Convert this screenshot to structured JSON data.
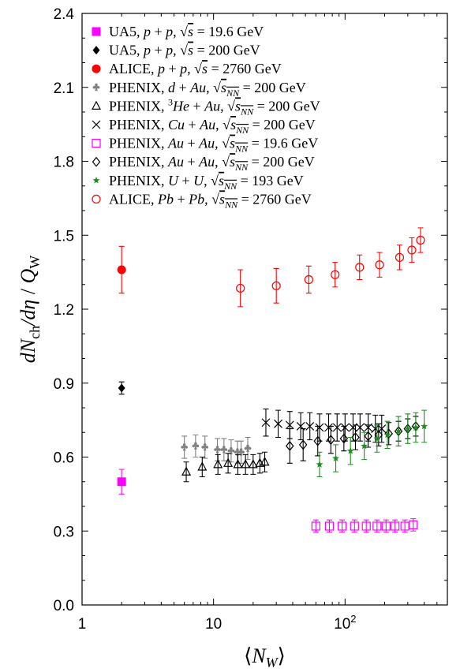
{
  "chart_data": {
    "type": "scatter",
    "title": "",
    "xlabel": "⟨N_W⟩",
    "ylabel": "dN_ch/dη / Q_W",
    "xscale": "log",
    "xlim": [
      1,
      600
    ],
    "ylim": [
      0,
      2.4
    ],
    "x_ticks": [
      {
        "value": 1,
        "label": "1"
      },
      {
        "value": 10,
        "label": "10"
      },
      {
        "value": 100,
        "label": "10²"
      }
    ],
    "y_ticks": [
      {
        "value": 0.0,
        "label": "0.0"
      },
      {
        "value": 0.3,
        "label": "0.3"
      },
      {
        "value": 0.6,
        "label": "0.6"
      },
      {
        "value": 0.9,
        "label": "0.9"
      },
      {
        "value": 1.2,
        "label": "1.2"
      },
      {
        "value": 1.5,
        "label": "1.5"
      },
      {
        "value": 1.8,
        "label": "1.8"
      },
      {
        "value": 2.1,
        "label": "2.1"
      },
      {
        "value": 2.4,
        "label": "2.4"
      }
    ],
    "grid": false,
    "legend_position": "top-left",
    "series": [
      {
        "name": "UA5, p + p, √s = 19.6 GeV",
        "marker": "square-filled",
        "color": "#ff00ff",
        "points": [
          {
            "x": 2,
            "y": 0.5,
            "err": 0.05
          }
        ]
      },
      {
        "name": "UA5, p + p, √s = 200 GeV",
        "marker": "diamond-filled",
        "color": "#000000",
        "points": [
          {
            "x": 2,
            "y": 0.88,
            "err": 0.025
          }
        ]
      },
      {
        "name": "ALICE, p + p, √s = 2760 GeV",
        "marker": "circle-filled",
        "color": "#ff0000",
        "points": [
          {
            "x": 2,
            "y": 1.36,
            "err": 0.095
          }
        ]
      },
      {
        "name": "PHENIX, d + Au, √s_NN = 200 GeV",
        "marker": "club",
        "color": "#808080",
        "points": [
          {
            "x": 6.0,
            "y": 0.64,
            "err": 0.045
          },
          {
            "x": 7.3,
            "y": 0.645,
            "err": 0.045
          },
          {
            "x": 8.6,
            "y": 0.64,
            "err": 0.045
          },
          {
            "x": 10.7,
            "y": 0.63,
            "err": 0.045
          },
          {
            "x": 12.0,
            "y": 0.63,
            "err": 0.045
          },
          {
            "x": 13.6,
            "y": 0.625,
            "err": 0.045
          },
          {
            "x": 15.2,
            "y": 0.62,
            "err": 0.045
          },
          {
            "x": 16.2,
            "y": 0.62,
            "err": 0.045
          },
          {
            "x": 18.2,
            "y": 0.635,
            "err": 0.045
          }
        ]
      },
      {
        "name": "PHENIX, ³He + Au, √s_NN = 200 GeV",
        "marker": "triangle-open",
        "color": "#000000",
        "points": [
          {
            "x": 6.2,
            "y": 0.54,
            "err": 0.04
          },
          {
            "x": 8.2,
            "y": 0.56,
            "err": 0.04
          },
          {
            "x": 10.8,
            "y": 0.57,
            "err": 0.04
          },
          {
            "x": 12.9,
            "y": 0.575,
            "err": 0.04
          },
          {
            "x": 15.3,
            "y": 0.57,
            "err": 0.04
          },
          {
            "x": 17.5,
            "y": 0.57,
            "err": 0.04
          },
          {
            "x": 20.0,
            "y": 0.57,
            "err": 0.04
          },
          {
            "x": 22.5,
            "y": 0.575,
            "err": 0.04
          },
          {
            "x": 24.5,
            "y": 0.58,
            "err": 0.04
          }
        ]
      },
      {
        "name": "PHENIX, Cu + Au, √s_NN = 200 GeV",
        "marker": "cross",
        "color": "#000000",
        "points": [
          {
            "x": 25,
            "y": 0.74,
            "err": 0.055
          },
          {
            "x": 31,
            "y": 0.735,
            "err": 0.055
          },
          {
            "x": 38,
            "y": 0.73,
            "err": 0.055
          },
          {
            "x": 46,
            "y": 0.725,
            "err": 0.055
          },
          {
            "x": 54,
            "y": 0.725,
            "err": 0.055
          },
          {
            "x": 64,
            "y": 0.72,
            "err": 0.055
          },
          {
            "x": 75,
            "y": 0.72,
            "err": 0.055
          },
          {
            "x": 87,
            "y": 0.72,
            "err": 0.055
          },
          {
            "x": 100,
            "y": 0.72,
            "err": 0.055
          },
          {
            "x": 115,
            "y": 0.72,
            "err": 0.055
          },
          {
            "x": 130,
            "y": 0.72,
            "err": 0.055
          },
          {
            "x": 150,
            "y": 0.72,
            "err": 0.055
          },
          {
            "x": 170,
            "y": 0.715,
            "err": 0.055
          },
          {
            "x": 190,
            "y": 0.715,
            "err": 0.055
          }
        ]
      },
      {
        "name": "PHENIX, Au + Au, √s_NN = 19.6 GeV",
        "marker": "square-open",
        "color": "#ff00ff",
        "points": [
          {
            "x": 60,
            "y": 0.32,
            "err": 0.025
          },
          {
            "x": 76,
            "y": 0.32,
            "err": 0.025
          },
          {
            "x": 95,
            "y": 0.32,
            "err": 0.025
          },
          {
            "x": 118,
            "y": 0.32,
            "err": 0.025
          },
          {
            "x": 145,
            "y": 0.32,
            "err": 0.025
          },
          {
            "x": 175,
            "y": 0.32,
            "err": 0.025
          },
          {
            "x": 205,
            "y": 0.32,
            "err": 0.025
          },
          {
            "x": 240,
            "y": 0.32,
            "err": 0.025
          },
          {
            "x": 285,
            "y": 0.32,
            "err": 0.025
          },
          {
            "x": 330,
            "y": 0.325,
            "err": 0.025
          }
        ]
      },
      {
        "name": "PHENIX, Au + Au, √s_NN = 200 GeV",
        "marker": "diamond-open",
        "color": "#000000",
        "points": [
          {
            "x": 38,
            "y": 0.645,
            "err": 0.07
          },
          {
            "x": 48,
            "y": 0.65,
            "err": 0.065
          },
          {
            "x": 62,
            "y": 0.665,
            "err": 0.06
          },
          {
            "x": 78,
            "y": 0.67,
            "err": 0.055
          },
          {
            "x": 98,
            "y": 0.675,
            "err": 0.05
          },
          {
            "x": 120,
            "y": 0.68,
            "err": 0.05
          },
          {
            "x": 150,
            "y": 0.685,
            "err": 0.045
          },
          {
            "x": 180,
            "y": 0.69,
            "err": 0.045
          },
          {
            "x": 215,
            "y": 0.695,
            "err": 0.045
          },
          {
            "x": 255,
            "y": 0.705,
            "err": 0.04
          },
          {
            "x": 300,
            "y": 0.715,
            "err": 0.04
          },
          {
            "x": 345,
            "y": 0.725,
            "err": 0.04
          }
        ]
      },
      {
        "name": "PHENIX, U + U, √s_NN = 193 GeV",
        "marker": "star",
        "color": "#228b22",
        "points": [
          {
            "x": 64,
            "y": 0.57,
            "err": 0.05
          },
          {
            "x": 85,
            "y": 0.595,
            "err": 0.055
          },
          {
            "x": 110,
            "y": 0.625,
            "err": 0.055
          },
          {
            "x": 140,
            "y": 0.645,
            "err": 0.055
          },
          {
            "x": 175,
            "y": 0.675,
            "err": 0.055
          },
          {
            "x": 210,
            "y": 0.69,
            "err": 0.055
          },
          {
            "x": 255,
            "y": 0.705,
            "err": 0.06
          },
          {
            "x": 300,
            "y": 0.715,
            "err": 0.06
          },
          {
            "x": 345,
            "y": 0.72,
            "err": 0.06
          },
          {
            "x": 400,
            "y": 0.725,
            "err": 0.065
          }
        ]
      },
      {
        "name": "ALICE, Pb + Pb, √s_NN = 2760 GeV",
        "marker": "circle-open",
        "color": "#ff0000",
        "points": [
          {
            "x": 16,
            "y": 1.285,
            "err": 0.075
          },
          {
            "x": 30,
            "y": 1.295,
            "err": 0.07
          },
          {
            "x": 53,
            "y": 1.32,
            "err": 0.055
          },
          {
            "x": 84,
            "y": 1.34,
            "err": 0.05
          },
          {
            "x": 129,
            "y": 1.37,
            "err": 0.05
          },
          {
            "x": 183,
            "y": 1.38,
            "err": 0.05
          },
          {
            "x": 260,
            "y": 1.41,
            "err": 0.05
          },
          {
            "x": 322,
            "y": 1.44,
            "err": 0.05
          },
          {
            "x": 375,
            "y": 1.48,
            "err": 0.05
          }
        ]
      }
    ]
  }
}
